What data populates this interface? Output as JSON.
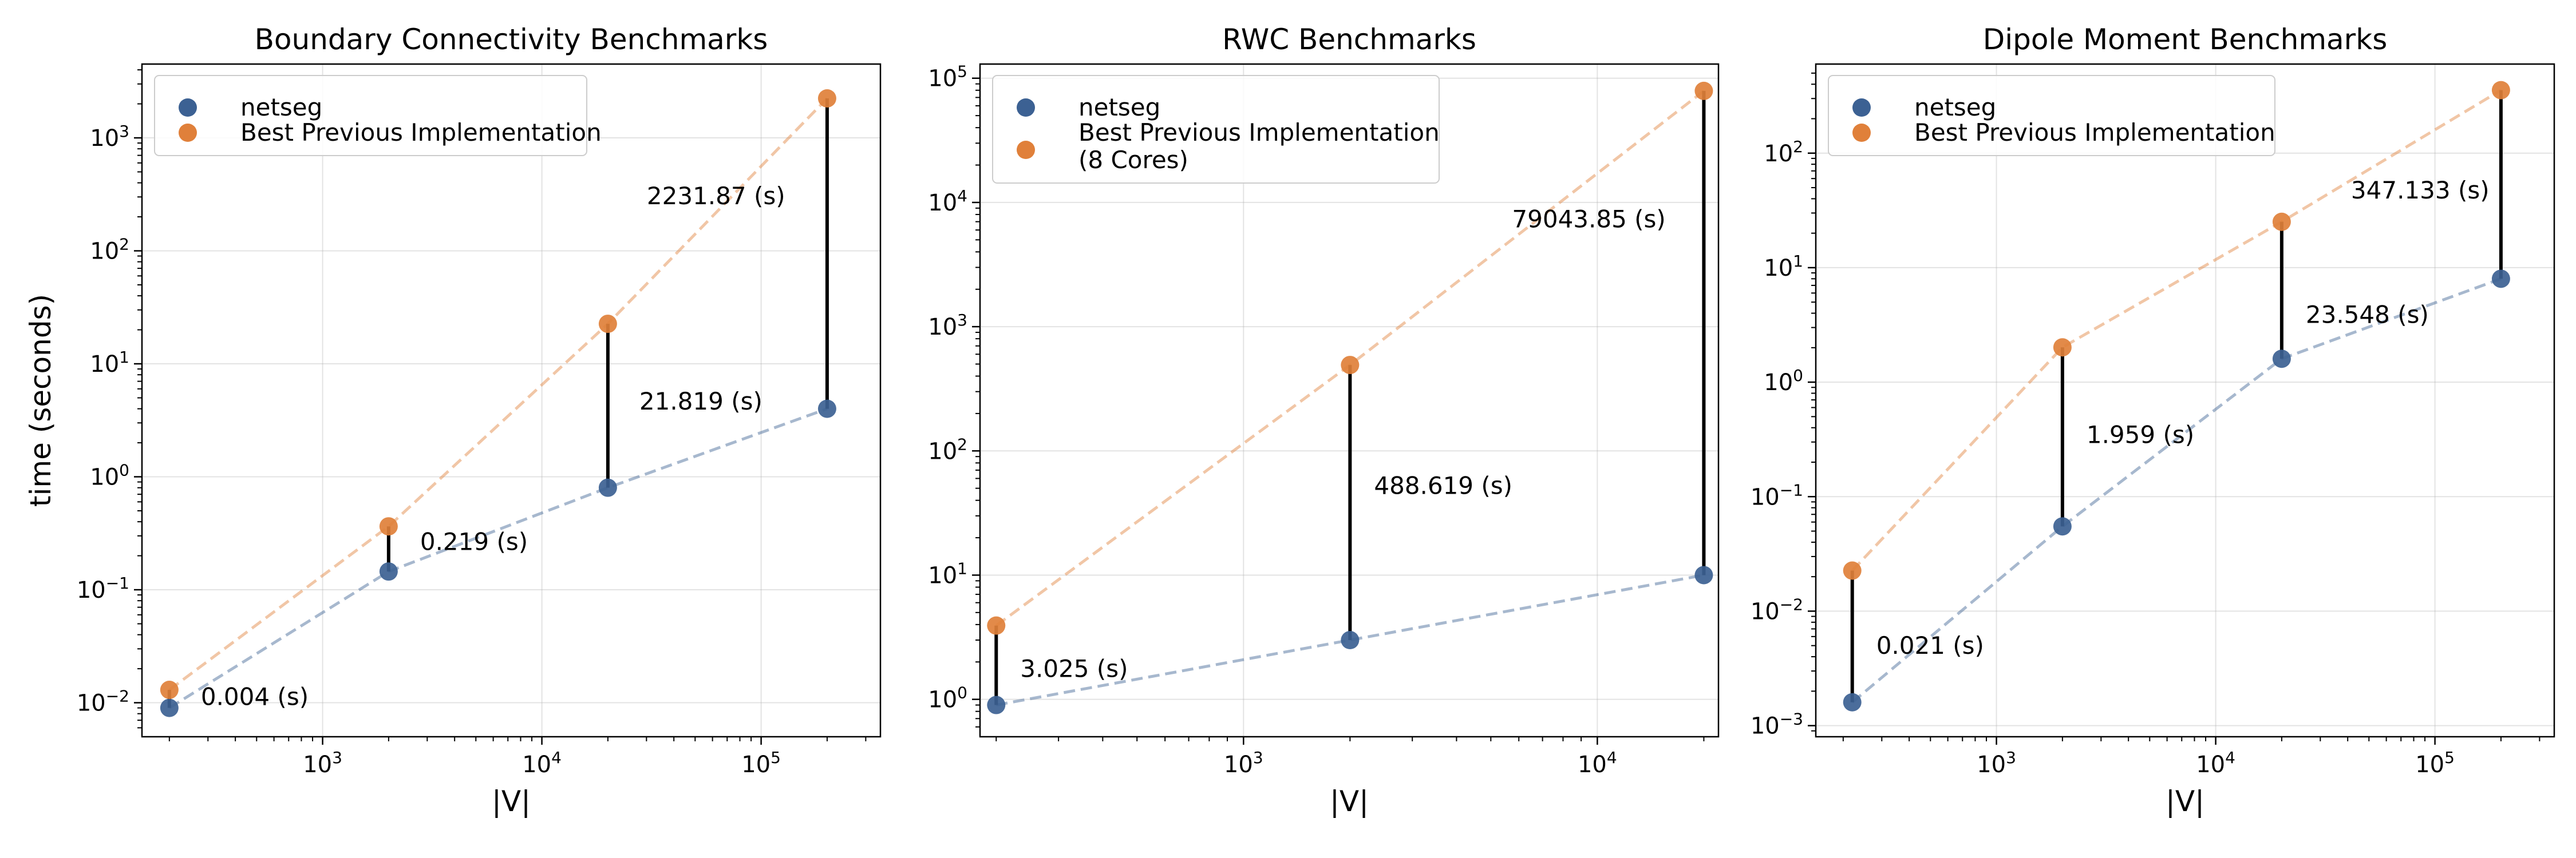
{
  "colors": {
    "netseg": "#3c6193",
    "previous": "#e0803a",
    "connector": "#000000"
  },
  "chart_data": [
    {
      "type": "scatter",
      "title": "Boundary Connectivity Benchmarks",
      "xlabel": "|V|",
      "ylabel": "time (seconds)",
      "xscale": "log",
      "yscale": "log",
      "xlim": [
        150,
        350000
      ],
      "ylim": [
        0.005,
        4500
      ],
      "xticks": [
        1000,
        10000,
        100000
      ],
      "xtick_labels": [
        "10^3",
        "10^4",
        "10^5"
      ],
      "yticks": [
        0.01,
        0.1,
        1,
        10,
        100,
        1000
      ],
      "ytick_labels": [
        "10^-2",
        "10^-1",
        "10^0",
        "10^1",
        "10^2",
        "10^3"
      ],
      "grid": true,
      "legend_position": "top-left",
      "series": [
        {
          "name": "netseg",
          "x": [
            200,
            2000,
            20000,
            200000
          ],
          "y": [
            0.009,
            0.145,
            0.8,
            4.0
          ]
        },
        {
          "name": "Best Previous Implementation",
          "x": [
            200,
            2000,
            20000,
            200000
          ],
          "y": [
            0.013,
            0.364,
            22.6,
            2235.9
          ]
        }
      ],
      "annotations": [
        {
          "x": 200,
          "y": 0.009,
          "text": "0.004 (s)"
        },
        {
          "x": 2000,
          "y": 0.2,
          "text": "0.219 (s)"
        },
        {
          "x": 20000,
          "y": 3.5,
          "text": "21.819 (s)"
        },
        {
          "x": 200000,
          "y": 230,
          "text": "2231.87 (s)"
        }
      ]
    },
    {
      "type": "scatter",
      "title": "RWC Benchmarks",
      "xlabel": "|V|",
      "ylabel": "",
      "xscale": "log",
      "yscale": "log",
      "xlim": [
        180,
        22000
      ],
      "ylim": [
        0.5,
        130000
      ],
      "xticks": [
        1000,
        10000
      ],
      "xtick_labels": [
        "10^3",
        "10^4"
      ],
      "yticks": [
        1,
        10,
        100,
        1000,
        10000,
        100000
      ],
      "ytick_labels": [
        "10^0",
        "10^1",
        "10^2",
        "10^3",
        "10^4",
        "10^5"
      ],
      "grid": true,
      "legend_position": "top-left",
      "series": [
        {
          "name": "netseg",
          "x": [
            200,
            2000,
            20000
          ],
          "y": [
            0.9,
            3.0,
            10.0
          ]
        },
        {
          "name": "Best Previous Implementation (8 Cores)",
          "x": [
            200,
            2000,
            20000
          ],
          "y": [
            3.925,
            491.6,
            79053.85
          ]
        }
      ],
      "annotations": [
        {
          "x": 200,
          "y": 1.6,
          "text": "3.025 (s)"
        },
        {
          "x": 2000,
          "y": 50,
          "text": "488.619 (s)"
        },
        {
          "x": 20000,
          "y": 7000,
          "text": "79043.85 (s)"
        }
      ]
    },
    {
      "type": "scatter",
      "title": "Dipole Moment Benchmarks",
      "xlabel": "|V|",
      "ylabel": "",
      "xscale": "log",
      "yscale": "log",
      "xlim": [
        150,
        350000
      ],
      "ylim": [
        0.0008,
        600
      ],
      "xticks": [
        1000,
        10000,
        100000
      ],
      "xtick_labels": [
        "10^3",
        "10^4",
        "10^5"
      ],
      "yticks": [
        0.001,
        0.01,
        0.1,
        1,
        10,
        100
      ],
      "ytick_labels": [
        "10^-3",
        "10^-2",
        "10^-1",
        "10^0",
        "10^1",
        "10^2"
      ],
      "grid": true,
      "legend_position": "top-left",
      "series": [
        {
          "name": "netseg",
          "x": [
            220,
            2000,
            20000,
            200000
          ],
          "y": [
            0.0016,
            0.055,
            1.6,
            8.0
          ]
        },
        {
          "name": "Best Previous Implementation",
          "x": [
            220,
            2000,
            20000,
            200000
          ],
          "y": [
            0.0226,
            2.014,
            25.15,
            355.1
          ]
        }
      ],
      "annotations": [
        {
          "x": 220,
          "y": 0.0045,
          "text": "0.021 (s)"
        },
        {
          "x": 2000,
          "y": 0.33,
          "text": "1.959 (s)"
        },
        {
          "x": 20000,
          "y": 3.7,
          "text": "23.548 (s)"
        },
        {
          "x": 200000,
          "y": 45,
          "text": "347.133 (s)"
        }
      ]
    }
  ]
}
